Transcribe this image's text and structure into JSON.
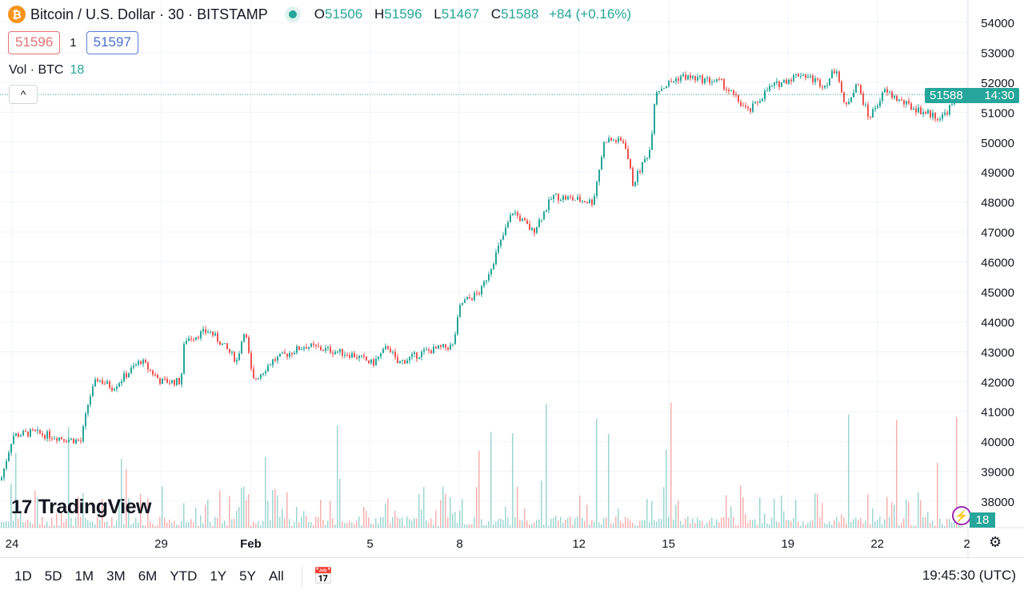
{
  "header": {
    "symbol_icon": "bitcoin-icon",
    "title": "Bitcoin / U.S. Dollar · 30 · BITSTAMP",
    "ohlc": {
      "o_label": "O",
      "o": "51506",
      "h_label": "H",
      "h": "51596",
      "l_label": "L",
      "l": "51467",
      "c_label": "C",
      "c": "51588",
      "change": "+84 (+0.16%)"
    }
  },
  "trade": {
    "sell": "51596",
    "qty": "1",
    "buy": "51597"
  },
  "volume": {
    "label": "Vol · BTC",
    "value": "18"
  },
  "collapse_icon": "^",
  "last_price": {
    "price": "51588",
    "countdown": "14:30"
  },
  "volume_badge": "18",
  "logo": "TradingView",
  "bottom": {
    "ranges": [
      "1D",
      "5D",
      "1M",
      "3M",
      "6M",
      "YTD",
      "1Y",
      "5Y",
      "All"
    ],
    "clock": "19:45:30 (UTC)"
  },
  "colors": {
    "up": "#26a69a",
    "down": "#ef5350"
  },
  "chart_data": {
    "type": "candlestick",
    "title": "Bitcoin / U.S. Dollar · 30 · BITSTAMP",
    "y_ticks": [
      "54000",
      "53000",
      "52000",
      "51000",
      "50000",
      "49000",
      "48000",
      "47000",
      "46000",
      "45000",
      "44000",
      "43000",
      "42000",
      "41000",
      "40000",
      "39000",
      "38000"
    ],
    "ylim": [
      37300,
      54500
    ],
    "x_ticks": [
      {
        "label": "24",
        "day": 0
      },
      {
        "label": "29",
        "day": 5
      },
      {
        "label": "Feb",
        "day": 8
      },
      {
        "label": "5",
        "day": 12
      },
      {
        "label": "8",
        "day": 15
      },
      {
        "label": "12",
        "day": 19
      },
      {
        "label": "15",
        "day": 22
      },
      {
        "label": "19",
        "day": 26
      },
      {
        "label": "22",
        "day": 29
      },
      {
        "label": "2",
        "day": 32
      }
    ],
    "x_unit": "days since Jan 24",
    "close_path": [
      [
        -0.4,
        38700
      ],
      [
        0,
        40200
      ],
      [
        0.67,
        40300
      ],
      [
        2.28,
        40000
      ],
      [
        2.55,
        41400
      ],
      [
        2.82,
        42100
      ],
      [
        3.35,
        41800
      ],
      [
        4.29,
        42700
      ],
      [
        4.96,
        42000
      ],
      [
        5.63,
        42000
      ],
      [
        5.76,
        43400
      ],
      [
        6.57,
        43700
      ],
      [
        6.97,
        43300
      ],
      [
        7.51,
        42700
      ],
      [
        7.77,
        43800
      ],
      [
        8.04,
        42000
      ],
      [
        8.71,
        42700
      ],
      [
        9.79,
        43200
      ],
      [
        11.39,
        42900
      ],
      [
        12.06,
        42600
      ],
      [
        12.6,
        43200
      ],
      [
        12.87,
        42600
      ],
      [
        13.81,
        43000
      ],
      [
        14.75,
        43200
      ],
      [
        15.01,
        44600
      ],
      [
        15.68,
        45000
      ],
      [
        16.09,
        46000
      ],
      [
        16.76,
        47700
      ],
      [
        17.43,
        47000
      ],
      [
        18.1,
        48200
      ],
      [
        19.44,
        48000
      ],
      [
        19.84,
        50100
      ],
      [
        20.51,
        50000
      ],
      [
        20.78,
        48600
      ],
      [
        21.37,
        49800
      ],
      [
        21.53,
        51700
      ],
      [
        22.39,
        52200
      ],
      [
        23.73,
        52000
      ],
      [
        24.66,
        51000
      ],
      [
        25.34,
        51800
      ],
      [
        26.41,
        52300
      ],
      [
        27.21,
        51900
      ],
      [
        27.61,
        52500
      ],
      [
        27.88,
        51100
      ],
      [
        28.28,
        52000
      ],
      [
        28.69,
        50800
      ],
      [
        29.22,
        51700
      ],
      [
        30.03,
        51200
      ],
      [
        31.1,
        50800
      ],
      [
        31.77,
        51588
      ]
    ],
    "last_price": 51588
  }
}
